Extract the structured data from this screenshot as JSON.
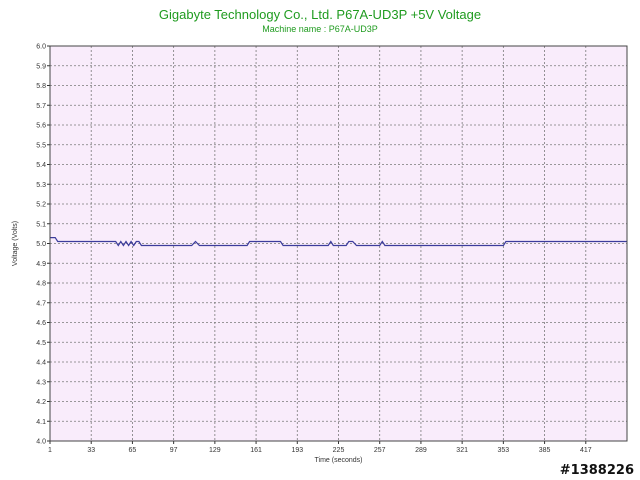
{
  "chart_data": {
    "type": "line",
    "title": "Gigabyte Technology Co., Ltd. P67A-UD3P +5V Voltage",
    "subtitle": "Machine name : P67A-UD3P",
    "xlabel": "Time (seconds)",
    "ylabel": "Voltage (Volts)",
    "xlim": [
      1,
      449
    ],
    "ylim": [
      4.0,
      6.0
    ],
    "x_ticks": [
      1,
      33,
      65,
      97,
      129,
      161,
      193,
      225,
      257,
      289,
      321,
      353,
      385,
      417
    ],
    "y_ticks": [
      "4.0",
      "4.1",
      "4.2",
      "4.3",
      "4.4",
      "4.5",
      "4.6",
      "4.7",
      "4.8",
      "4.9",
      "5.0",
      "5.1",
      "5.2",
      "5.3",
      "5.4",
      "5.5",
      "5.6",
      "5.7",
      "5.8",
      "5.9",
      "6.0"
    ],
    "grid": true,
    "line_color": "#3c3c9c",
    "plot_background": "#f9ecfb",
    "grid_color": "#7a7a7a",
    "series": [
      {
        "x": [
          1,
          5,
          7,
          52,
          54,
          56,
          58,
          60,
          62,
          64,
          66,
          68,
          70,
          72,
          75,
          111,
          114,
          117,
          154,
          156,
          180,
          182,
          217,
          219,
          221,
          231,
          233,
          236,
          239,
          257,
          259,
          261,
          353,
          355,
          449
        ],
        "y": [
          5.03,
          5.03,
          5.01,
          5.01,
          4.99,
          5.01,
          4.99,
          5.01,
          4.99,
          5.01,
          4.99,
          5.01,
          5.01,
          4.99,
          4.99,
          4.99,
          5.01,
          4.99,
          4.99,
          5.01,
          5.01,
          4.99,
          4.99,
          5.01,
          4.99,
          4.99,
          5.01,
          5.01,
          4.99,
          4.99,
          5.01,
          4.99,
          4.99,
          5.01,
          5.01
        ]
      }
    ]
  },
  "watermark": "#1388226"
}
